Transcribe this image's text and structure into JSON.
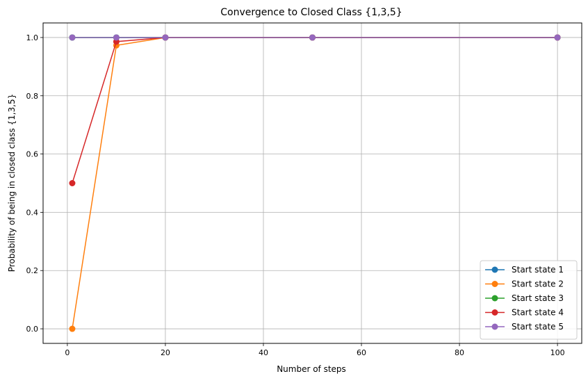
{
  "chart_data": {
    "type": "line",
    "title": "Convergence to Closed Class {1,3,5}",
    "xlabel": "Number of steps",
    "ylabel": "Probability of being in closed class {1,3,5}",
    "x": [
      1,
      10,
      20,
      50,
      100
    ],
    "xlim": [
      -4.95,
      104.95
    ],
    "ylim": [
      -0.05,
      1.05
    ],
    "xticks": [
      0,
      20,
      40,
      60,
      80,
      100
    ],
    "xtick_labels": [
      "0",
      "20",
      "40",
      "60",
      "80",
      "100"
    ],
    "yticks": [
      0.0,
      0.2,
      0.4,
      0.6,
      0.8,
      1.0
    ],
    "ytick_labels": [
      "0.0",
      "0.2",
      "0.4",
      "0.6",
      "0.8",
      "1.0"
    ],
    "grid": true,
    "legend_position": "lower-right",
    "series": [
      {
        "name": "Start state 1",
        "color": "#1f77b4",
        "values": [
          1.0,
          1.0,
          1.0,
          1.0,
          1.0
        ]
      },
      {
        "name": "Start state 2",
        "color": "#ff7f0e",
        "values": [
          0.0,
          0.973,
          1.0,
          1.0,
          1.0
        ]
      },
      {
        "name": "Start state 3",
        "color": "#2ca02c",
        "values": [
          1.0,
          1.0,
          1.0,
          1.0,
          1.0
        ]
      },
      {
        "name": "Start state 4",
        "color": "#d62728",
        "values": [
          0.5,
          0.986,
          1.0,
          1.0,
          1.0
        ]
      },
      {
        "name": "Start state 5",
        "color": "#9467bd",
        "values": [
          1.0,
          1.0,
          1.0,
          1.0,
          1.0
        ]
      }
    ]
  }
}
